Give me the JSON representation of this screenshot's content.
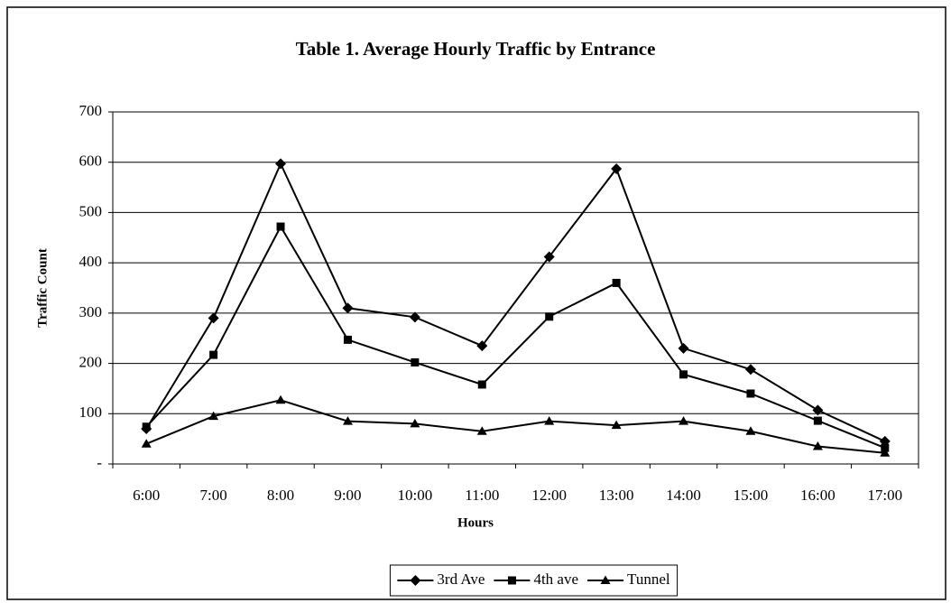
{
  "chart_data": {
    "type": "line",
    "title": "Table 1.  Average Hourly Traffic by Entrance",
    "x_label": "Hours",
    "y_label": "Traffic Count",
    "categories": [
      "6:00",
      "7:00",
      "8:00",
      "9:00",
      "10:00",
      "11:00",
      "12:00",
      "13:00",
      "14:00",
      "15:00",
      "16:00",
      "17:00"
    ],
    "series": [
      {
        "name": "3rd Ave",
        "color": "#000000",
        "marker": "diamond",
        "values": [
          70,
          290,
          597,
          310,
          292,
          235,
          412,
          587,
          230,
          188,
          107,
          45
        ]
      },
      {
        "name": "4th ave",
        "color": "#000000",
        "marker": "square",
        "values": [
          74,
          217,
          472,
          247,
          202,
          158,
          293,
          360,
          178,
          140,
          86,
          32
        ]
      },
      {
        "name": "Tunnel",
        "color": "#000000",
        "marker": "triangle",
        "values": [
          40,
          95,
          127,
          85,
          80,
          65,
          85,
          77,
          85,
          65,
          35,
          22
        ]
      }
    ],
    "ylim": [
      0,
      700
    ],
    "yticks": [
      {
        "value": 0,
        "label": "-"
      },
      100,
      200,
      300,
      400,
      500,
      600,
      700
    ],
    "grid": true,
    "legend": "bottom"
  }
}
